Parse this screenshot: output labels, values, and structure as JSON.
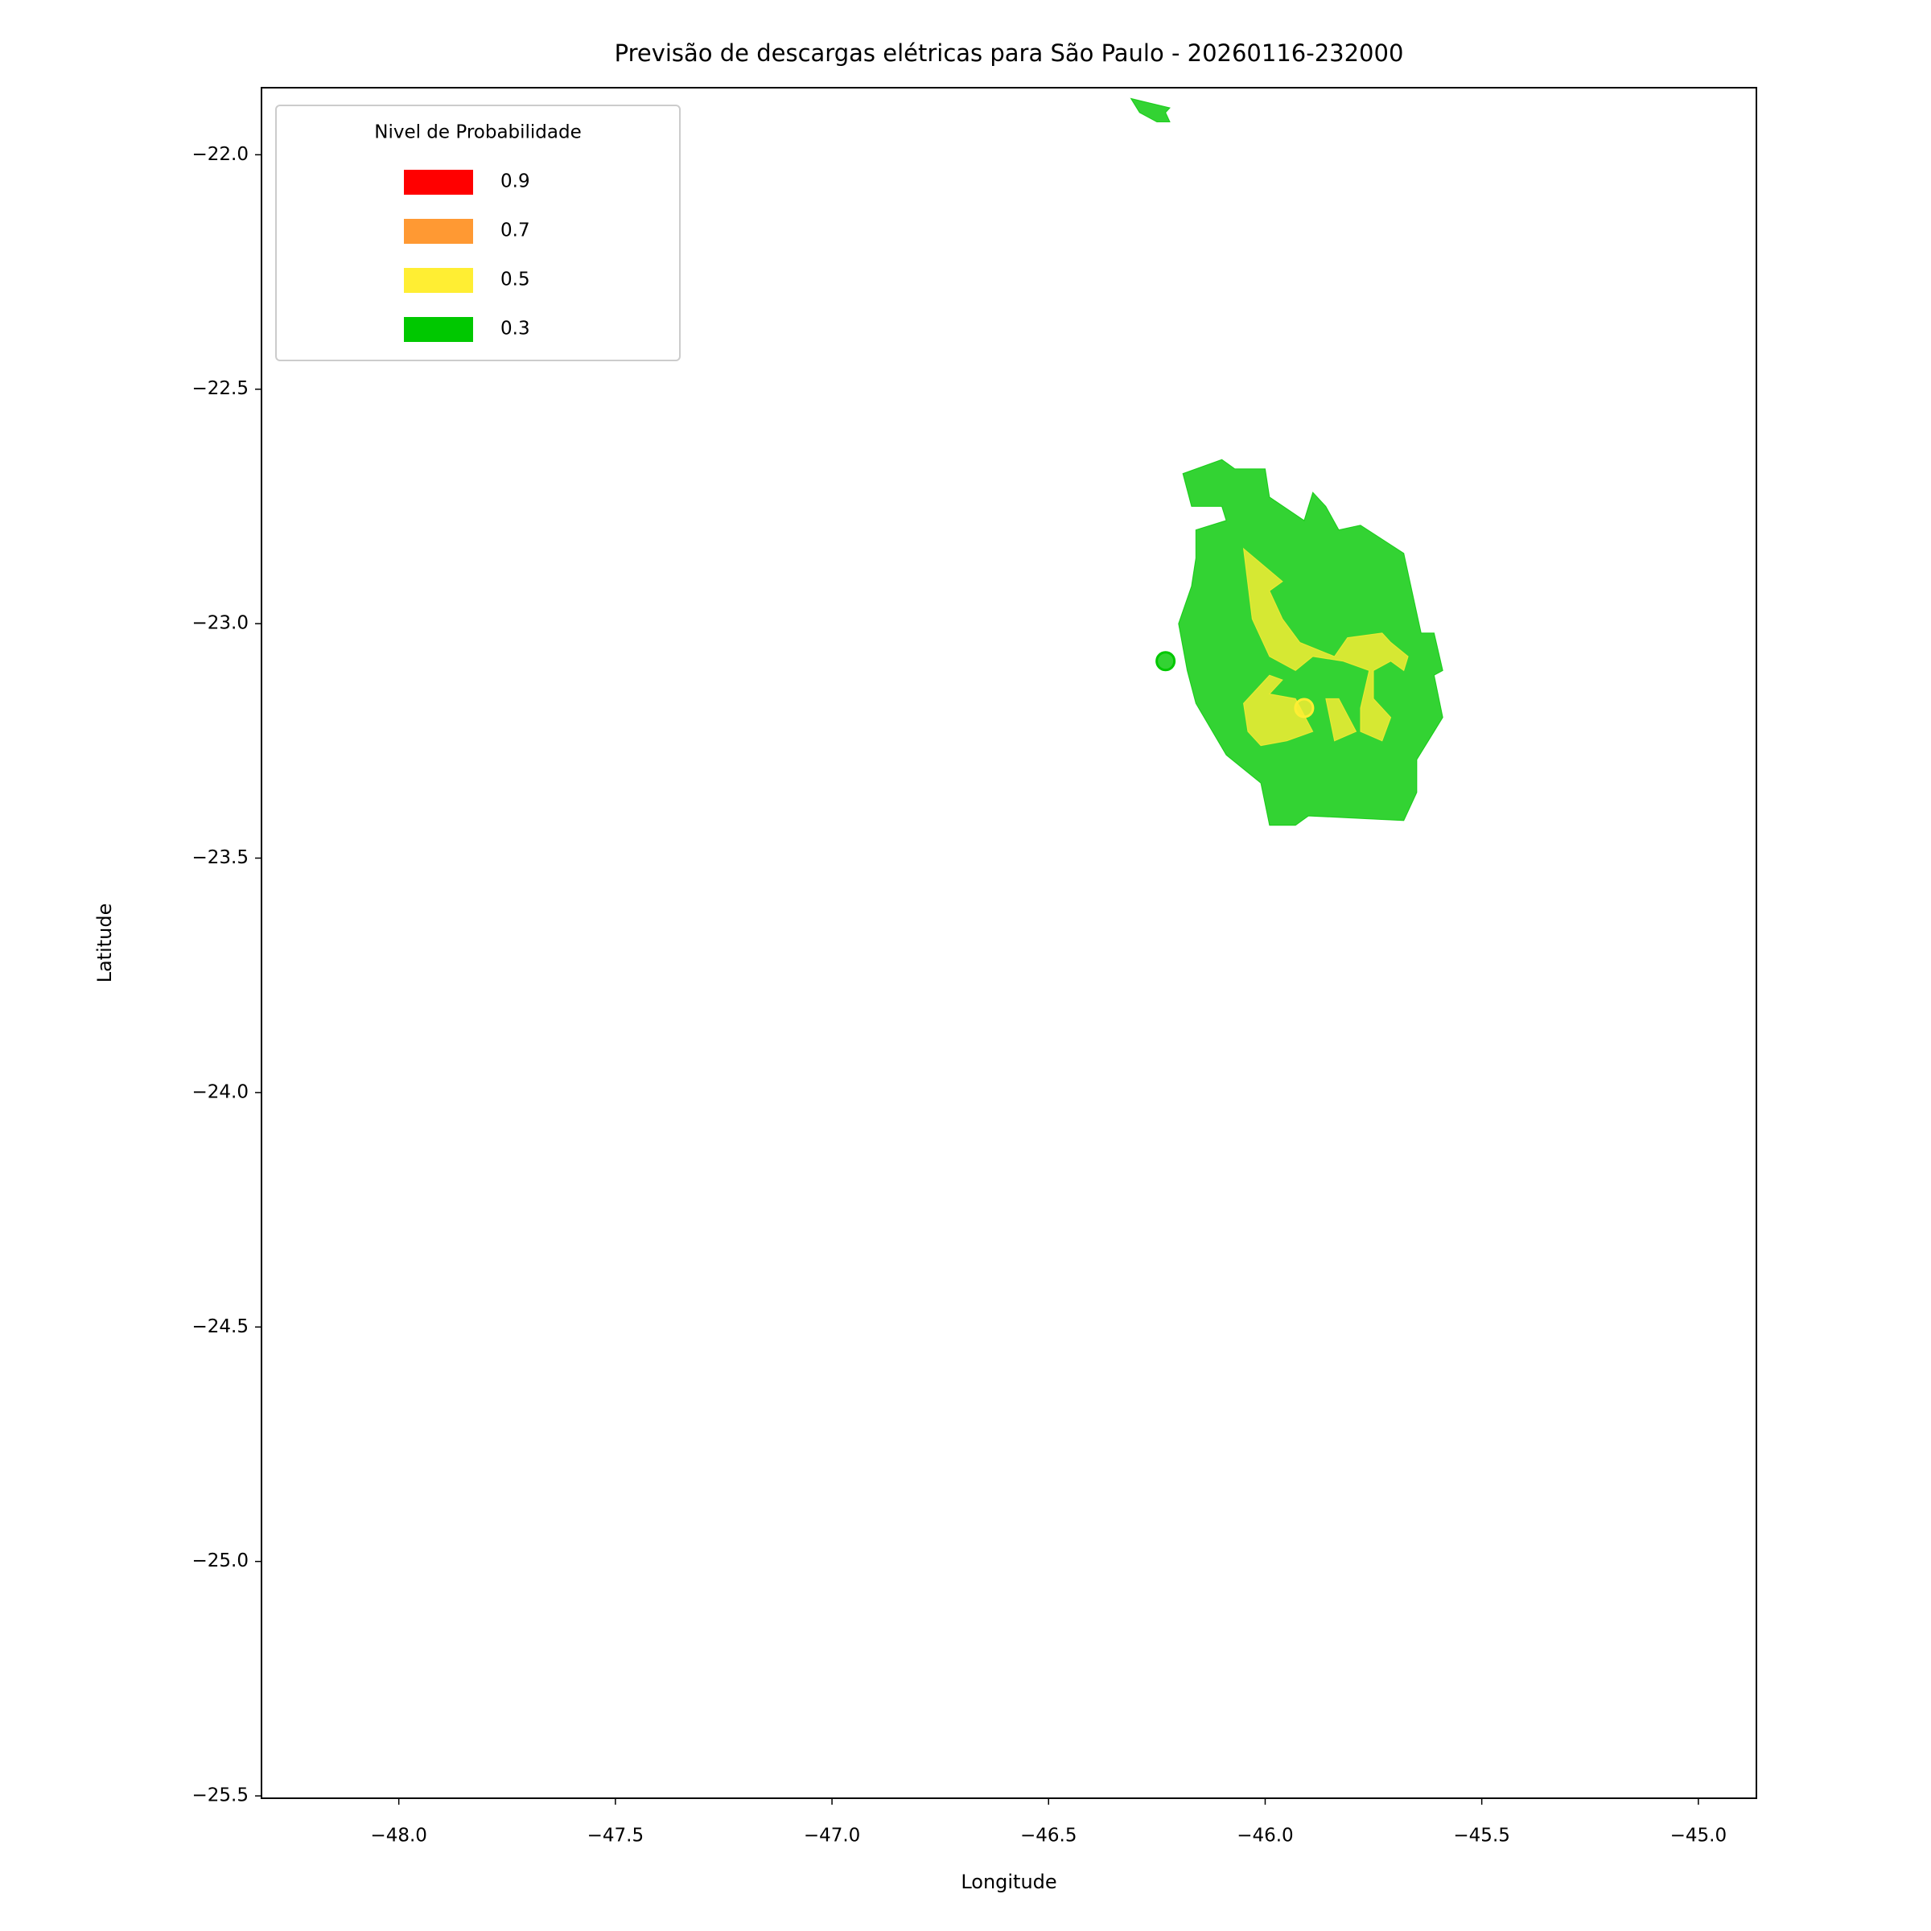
{
  "chart_data": {
    "type": "map",
    "title": "Previsão de descargas elétricas para São Paulo - 20260116-232000",
    "xlabel": "Longitude",
    "ylabel": "Latitude",
    "xlim": [
      -48.317,
      -44.866
    ],
    "ylim": [
      -25.505,
      -21.857
    ],
    "xticks": [
      {
        "value": -48,
        "label": "−48.0"
      },
      {
        "value": -47.5,
        "label": "−47.5"
      },
      {
        "value": -47,
        "label": "−47.0"
      },
      {
        "value": -46.5,
        "label": "−46.5"
      },
      {
        "value": -46,
        "label": "−46.0"
      },
      {
        "value": -45.5,
        "label": "−45.5"
      },
      {
        "value": -45,
        "label": "−45.0"
      }
    ],
    "yticks": [
      {
        "value": -22,
        "label": "−22.0"
      },
      {
        "value": -22.5,
        "label": "−22.5"
      },
      {
        "value": -23,
        "label": "−23.0"
      },
      {
        "value": -23.5,
        "label": "−23.5"
      },
      {
        "value": -24,
        "label": "−24.0"
      },
      {
        "value": -24.5,
        "label": "−24.5"
      },
      {
        "value": -25,
        "label": "−25.0"
      },
      {
        "value": -25.5,
        "label": "−25.5"
      }
    ],
    "alpha": 0.8,
    "legend": {
      "title": "Nivel de Probabilidade",
      "loc": "upper left",
      "entries": [
        {
          "value": 0.9,
          "color": "#ff0000"
        },
        {
          "value": 0.7,
          "color": "#ff9933"
        },
        {
          "value": 0.5,
          "color": "#ffee33"
        },
        {
          "value": 0.3,
          "color": "#00c800"
        }
      ]
    },
    "regions": [
      {
        "level": 0.3,
        "lon": [
          -46.19,
          -46.1,
          -46.07,
          -46.0,
          -45.99,
          -45.91,
          -45.89,
          -45.86,
          -45.83,
          -45.78,
          -45.68,
          -45.64,
          -45.61,
          -45.59,
          -45.61,
          -45.59,
          -45.65,
          -45.65,
          -45.68,
          -45.9,
          -45.93,
          -45.99,
          -46.01,
          -46.09,
          -46.16,
          -46.18,
          -46.2,
          -46.17,
          -46.16,
          -46.16,
          -46.09,
          -46.1,
          -46.17
        ],
        "lat": [
          -22.68,
          -22.65,
          -22.67,
          -22.67,
          -22.73,
          -22.78,
          -22.72,
          -22.75,
          -22.8,
          -22.79,
          -22.85,
          -23.02,
          -23.02,
          -23.1,
          -23.11,
          -23.2,
          -23.29,
          -23.36,
          -23.42,
          -23.41,
          -23.43,
          -23.43,
          -23.34,
          -23.28,
          -23.17,
          -23.1,
          -23.0,
          -22.92,
          -22.86,
          -22.8,
          -22.78,
          -22.75,
          -22.75
        ]
      },
      {
        "level": 0.3,
        "lon": [
          -46.31,
          -46.22,
          -46.23,
          -46.22,
          -46.25,
          -46.29
        ],
        "lat": [
          -21.88,
          -21.9,
          -21.91,
          -21.93,
          -21.93,
          -21.91
        ]
      },
      {
        "level": 0.5,
        "lon": [
          -46.05,
          -45.96,
          -45.99,
          -45.96,
          -45.92,
          -45.84,
          -45.81,
          -45.73,
          -45.71,
          -45.67,
          -45.68,
          -45.71,
          -45.75,
          -45.75,
          -45.71,
          -45.73,
          -45.78,
          -45.78,
          -45.76,
          -45.82,
          -45.89,
          -45.93,
          -45.99,
          -46.03
        ],
        "lat": [
          -22.84,
          -22.91,
          -22.93,
          -22.99,
          -23.04,
          -23.07,
          -23.03,
          -23.02,
          -23.04,
          -23.07,
          -23.1,
          -23.08,
          -23.1,
          -23.16,
          -23.2,
          -23.25,
          -23.23,
          -23.18,
          -23.1,
          -23.08,
          -23.07,
          -23.1,
          -23.07,
          -22.99
        ]
      },
      {
        "level": 0.5,
        "lon": [
          -46.05,
          -45.99,
          -45.96,
          -45.99,
          -45.93,
          -45.89,
          -45.95,
          -46.01,
          -46.04
        ],
        "lat": [
          -23.17,
          -23.11,
          -23.12,
          -23.15,
          -23.16,
          -23.23,
          -23.25,
          -23.26,
          -23.23
        ]
      },
      {
        "level": 0.5,
        "lon": [
          -45.86,
          -45.83,
          -45.79,
          -45.84
        ],
        "lat": [
          -23.16,
          -23.16,
          -23.23,
          -23.25
        ]
      }
    ],
    "points": [
      {
        "level": 0.3,
        "lon": -46.23,
        "lat": -23.08
      },
      {
        "level": 0.5,
        "lon": -45.91,
        "lat": -23.18
      }
    ]
  }
}
